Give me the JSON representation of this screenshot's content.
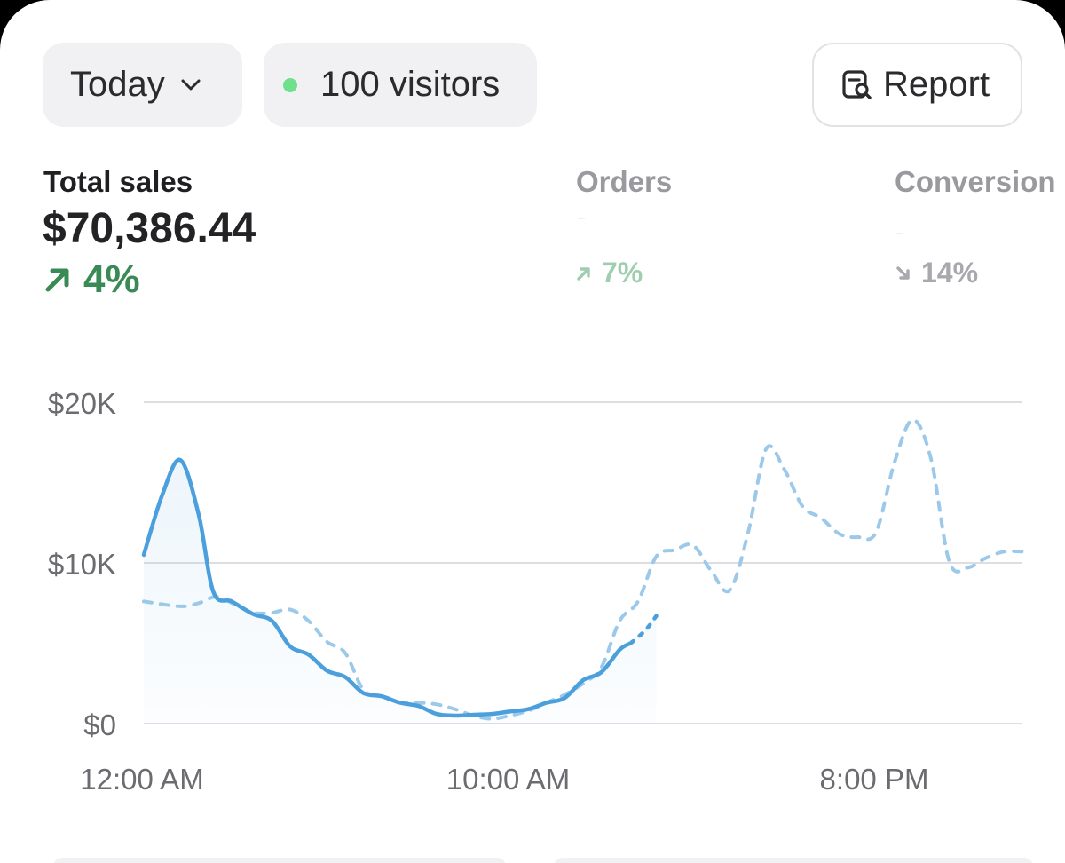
{
  "filter": {
    "label": "Today"
  },
  "visitors": {
    "label": "100 visitors",
    "dot_color": "#6fe08c"
  },
  "report": {
    "label": "Report"
  },
  "metrics": [
    {
      "label": "Total sales",
      "value": "$70,386.44",
      "change": "4%",
      "direction": "up",
      "active": true
    },
    {
      "label": "Orders",
      "value": "",
      "change": "7%",
      "direction": "up",
      "active": false
    },
    {
      "label": "Conversion",
      "value": "",
      "change": "14%",
      "direction": "down",
      "active": false
    }
  ],
  "colors": {
    "accent": "#4a9fdc",
    "positive": "#3a8a55"
  },
  "chart_data": {
    "type": "line",
    "x_ticks": [
      "12:00 AM",
      "10:00 AM",
      "8:00 PM"
    ],
    "y_ticks": [
      "$20K",
      "$10K",
      "$0"
    ],
    "ylim": [
      0,
      20000
    ],
    "x_hours_range": [
      0,
      24
    ],
    "grid": true,
    "series": [
      {
        "style": "solid",
        "x": [
          0,
          0.5,
          1,
          1.5,
          1.9,
          2.4,
          3,
          3.5,
          4,
          4.5,
          5,
          5.5,
          6,
          6.5,
          7,
          7.5,
          8,
          8.5,
          9,
          9.5,
          10,
          10.5,
          11,
          11.5,
          12,
          12.5,
          13,
          13.3
        ],
        "y": [
          10500,
          14200,
          16400,
          13000,
          8200,
          7600,
          6800,
          6400,
          4800,
          4300,
          3300,
          2900,
          1900,
          1700,
          1300,
          1100,
          600,
          500,
          550,
          600,
          750,
          900,
          1300,
          1600,
          2700,
          3200,
          4600,
          5000
        ]
      },
      {
        "style": "dotted",
        "x": [
          13.3,
          13.7,
          14
        ],
        "y": [
          5000,
          5800,
          6700
        ]
      },
      {
        "style": "dashed",
        "x": [
          0,
          1,
          1.5,
          2,
          2.5,
          3,
          3.5,
          4,
          4.5,
          5,
          5.5,
          6,
          6.5,
          7,
          7.5,
          8,
          8.5,
          9,
          9.5,
          10,
          10.5,
          11,
          11.5,
          12,
          12.5,
          13,
          13.5,
          14,
          14.5,
          15,
          15.5,
          16,
          16.5,
          17,
          17.5,
          18,
          18.5,
          19,
          19.5,
          20,
          20.5,
          21,
          21.5,
          22,
          22.5,
          23,
          23.5,
          24
        ],
        "y": [
          7600,
          7300,
          7500,
          7900,
          7400,
          6900,
          6900,
          7100,
          6400,
          5100,
          4400,
          2100,
          1700,
          1300,
          1300,
          1200,
          900,
          500,
          300,
          500,
          800,
          1300,
          1800,
          2500,
          3500,
          6400,
          7600,
          10400,
          10800,
          11100,
          9500,
          8300,
          11800,
          17100,
          15800,
          13500,
          12800,
          11800,
          11600,
          11900,
          16200,
          18900,
          16500,
          10100,
          9700,
          10300,
          10700,
          10700
        ]
      }
    ]
  }
}
